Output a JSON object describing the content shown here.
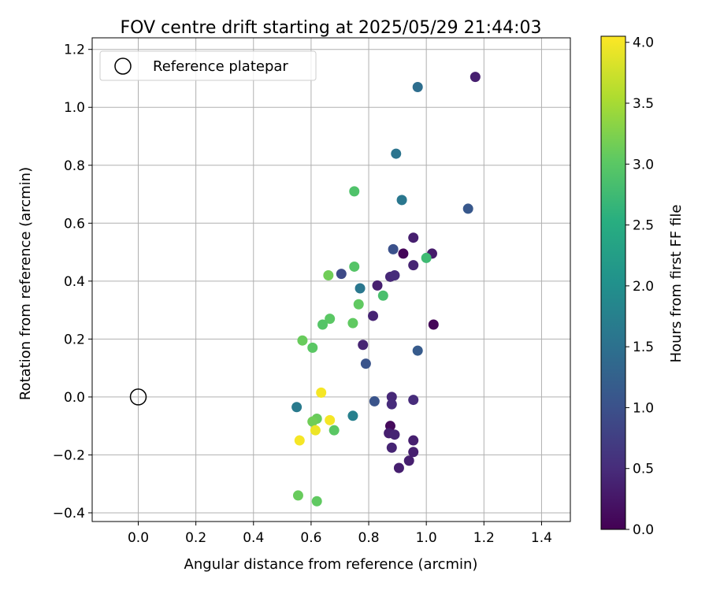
{
  "chart_data": {
    "type": "scatter",
    "title": "FOV centre drift starting at 2025/05/29 21:44:03",
    "xlabel": "Angular distance from reference (arcmin)",
    "ylabel": "Rotation from reference (arcmin)",
    "xlim": [
      -0.16,
      1.5
    ],
    "ylim": [
      -0.43,
      1.24
    ],
    "xticks": [
      0.0,
      0.2,
      0.4,
      0.6,
      0.8,
      1.0,
      1.2,
      1.4
    ],
    "xtick_labels": [
      "0.0",
      "0.2",
      "0.4",
      "0.6",
      "0.8",
      "1.0",
      "1.2",
      "1.4"
    ],
    "yticks": [
      -0.4,
      -0.2,
      0.0,
      0.2,
      0.4,
      0.6,
      0.8,
      1.0,
      1.2
    ],
    "ytick_labels": [
      "−0.4",
      "−0.2",
      "0.0",
      "0.2",
      "0.4",
      "0.6",
      "0.8",
      "1.0",
      "1.2"
    ],
    "grid": true,
    "legend": {
      "position": "top-left",
      "label": "Reference platepar",
      "marker": "open-circle"
    },
    "reference_point": {
      "x": 0.0,
      "y": 0.0
    },
    "colorbar": {
      "label": "Hours from first FF file",
      "colormap": "viridis",
      "range": [
        0.0,
        4.05
      ],
      "ticks": [
        0.0,
        0.5,
        1.0,
        1.5,
        2.0,
        2.5,
        3.0,
        3.5,
        4.0
      ],
      "tick_labels": [
        "0.0",
        "0.5",
        "1.0",
        "1.5",
        "2.0",
        "2.5",
        "3.0",
        "3.5",
        "4.0"
      ]
    },
    "points": [
      {
        "x": 1.17,
        "y": 1.105,
        "c": 0.35
      },
      {
        "x": 0.97,
        "y": 1.07,
        "c": 1.45
      },
      {
        "x": 0.895,
        "y": 0.84,
        "c": 1.55
      },
      {
        "x": 0.75,
        "y": 0.71,
        "c": 2.9
      },
      {
        "x": 0.915,
        "y": 0.68,
        "c": 1.6
      },
      {
        "x": 1.145,
        "y": 0.65,
        "c": 1.1
      },
      {
        "x": 0.955,
        "y": 0.55,
        "c": 0.35
      },
      {
        "x": 0.885,
        "y": 0.51,
        "c": 1.0
      },
      {
        "x": 0.92,
        "y": 0.495,
        "c": 0.05
      },
      {
        "x": 1.02,
        "y": 0.495,
        "c": 0.3
      },
      {
        "x": 1.0,
        "y": 0.48,
        "c": 2.75
      },
      {
        "x": 0.955,
        "y": 0.455,
        "c": 0.4
      },
      {
        "x": 0.75,
        "y": 0.45,
        "c": 2.95
      },
      {
        "x": 0.705,
        "y": 0.425,
        "c": 0.9
      },
      {
        "x": 0.66,
        "y": 0.42,
        "c": 3.15
      },
      {
        "x": 0.875,
        "y": 0.415,
        "c": 0.45
      },
      {
        "x": 0.89,
        "y": 0.42,
        "c": 0.5
      },
      {
        "x": 0.83,
        "y": 0.385,
        "c": 0.35
      },
      {
        "x": 0.77,
        "y": 0.375,
        "c": 1.6
      },
      {
        "x": 0.85,
        "y": 0.35,
        "c": 2.85
      },
      {
        "x": 0.765,
        "y": 0.32,
        "c": 3.05
      },
      {
        "x": 0.815,
        "y": 0.28,
        "c": 0.4
      },
      {
        "x": 0.665,
        "y": 0.27,
        "c": 3.0
      },
      {
        "x": 0.64,
        "y": 0.25,
        "c": 2.95
      },
      {
        "x": 0.745,
        "y": 0.255,
        "c": 3.05
      },
      {
        "x": 1.025,
        "y": 0.25,
        "c": 0.05
      },
      {
        "x": 0.57,
        "y": 0.195,
        "c": 3.1
      },
      {
        "x": 0.78,
        "y": 0.18,
        "c": 0.4
      },
      {
        "x": 0.605,
        "y": 0.17,
        "c": 3.0
      },
      {
        "x": 0.97,
        "y": 0.16,
        "c": 1.15
      },
      {
        "x": 0.79,
        "y": 0.115,
        "c": 1.05
      },
      {
        "x": 0.635,
        "y": 0.015,
        "c": 4.0
      },
      {
        "x": 0.88,
        "y": 0.0,
        "c": 0.45
      },
      {
        "x": 0.955,
        "y": -0.01,
        "c": 0.5
      },
      {
        "x": 0.82,
        "y": -0.015,
        "c": 1.05
      },
      {
        "x": 0.88,
        "y": -0.025,
        "c": 0.5
      },
      {
        "x": 0.55,
        "y": -0.035,
        "c": 1.65
      },
      {
        "x": 0.745,
        "y": -0.065,
        "c": 1.75
      },
      {
        "x": 0.62,
        "y": -0.075,
        "c": 3.1
      },
      {
        "x": 0.665,
        "y": -0.08,
        "c": 4.0
      },
      {
        "x": 0.605,
        "y": -0.085,
        "c": 3.15
      },
      {
        "x": 0.875,
        "y": -0.1,
        "c": 0.1
      },
      {
        "x": 0.615,
        "y": -0.115,
        "c": 3.95
      },
      {
        "x": 0.68,
        "y": -0.115,
        "c": 3.0
      },
      {
        "x": 0.87,
        "y": -0.125,
        "c": 0.35
      },
      {
        "x": 0.89,
        "y": -0.13,
        "c": 0.4
      },
      {
        "x": 0.56,
        "y": -0.15,
        "c": 4.0
      },
      {
        "x": 0.955,
        "y": -0.15,
        "c": 0.35
      },
      {
        "x": 0.88,
        "y": -0.175,
        "c": 0.4
      },
      {
        "x": 0.955,
        "y": -0.19,
        "c": 0.35
      },
      {
        "x": 0.94,
        "y": -0.22,
        "c": 0.35
      },
      {
        "x": 0.905,
        "y": -0.245,
        "c": 0.35
      },
      {
        "x": 0.555,
        "y": -0.34,
        "c": 3.1
      },
      {
        "x": 0.62,
        "y": -0.36,
        "c": 3.05
      }
    ]
  }
}
